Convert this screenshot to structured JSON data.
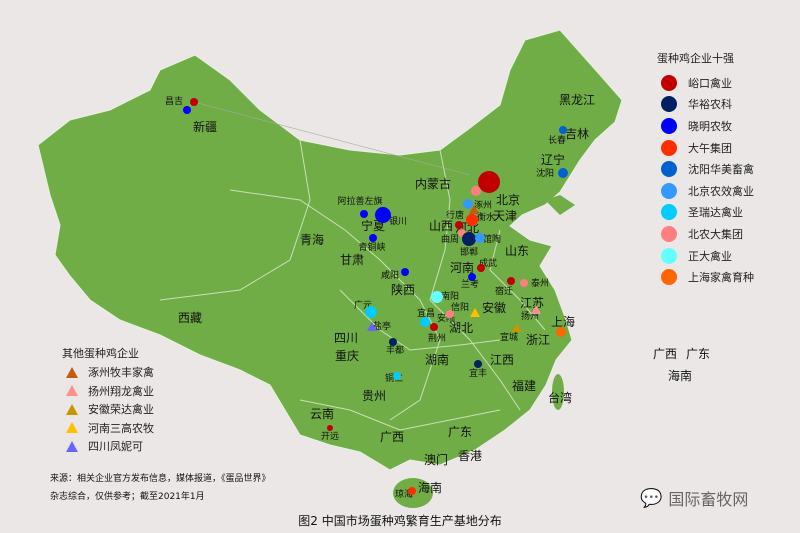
{
  "top_legend": {
    "title": "蛋种鸡企业十强",
    "items": [
      {
        "label": "峪口禽业",
        "color": "#c00000"
      },
      {
        "label": "华裕农科",
        "color": "#002060"
      },
      {
        "label": "晓明农牧",
        "color": "#0000ff"
      },
      {
        "label": "大午集团",
        "color": "#ff2d00"
      },
      {
        "label": "沈阳华美畜禽",
        "color": "#0060d0"
      },
      {
        "label": "北京农效禽业",
        "color": "#3399ff"
      },
      {
        "label": "圣瑞达禽业",
        "color": "#00ccff"
      },
      {
        "label": "北农大集团",
        "color": "#ff7f80"
      },
      {
        "label": "正大禽业",
        "color": "#66ffff"
      },
      {
        "label": "上海家禽育种",
        "color": "#ff6600"
      }
    ]
  },
  "other_legend": {
    "title": "其他蛋种鸡企业",
    "items": [
      {
        "label": "涿州牧丰家禽",
        "color": "#c55a11"
      },
      {
        "label": "扬州翔龙禽业",
        "color": "#ff8f8f"
      },
      {
        "label": "安徽荣达禽业",
        "color": "#c89600"
      },
      {
        "label": "河南三高农牧",
        "color": "#ffc000"
      },
      {
        "label": "四川凤妮可",
        "color": "#6666ff"
      }
    ]
  },
  "provinces": [
    "新疆",
    "西藏",
    "青海",
    "甘肃",
    "宁夏",
    "内蒙古",
    "黑龙江",
    "吉林",
    "辽宁",
    "北京",
    "天津",
    "河北",
    "山西",
    "山东",
    "河南",
    "陕西",
    "四川",
    "重庆",
    "贵州",
    "云南",
    "广西",
    "广东",
    "湖南",
    "湖北",
    "江西",
    "安徽",
    "江苏",
    "上海",
    "浙江",
    "福建",
    "台湾",
    "海南",
    "澳门",
    "香港"
  ],
  "inset_labels": [
    "广西",
    "广东",
    "海南"
  ],
  "cities": [
    "昌吉",
    "长春",
    "沈阳",
    "阿拉善左旗",
    "银川",
    "青铜峡",
    "咸阳",
    "涿州",
    "行唐",
    "衡水",
    "曲周",
    "馆陶",
    "邯郸",
    "成武",
    "兰考",
    "宿迁",
    "泰州",
    "扬州",
    "宣城",
    "南阳",
    "信阳",
    "宜昌",
    "安陆",
    "荆州",
    "广元",
    "盐亭",
    "丰都",
    "铜仁",
    "宜丰",
    "开远",
    "琼海"
  ],
  "source": [
    "来源：相关企业官方发布信息，媒体报道，《蛋品世界》",
    "杂志综合，仅供参考；截至2021年1月"
  ],
  "caption": "图2 中国市场蛋种鸡繁育生产基地分布",
  "watermark": "国际畜牧网",
  "colors": {
    "land": "#70ad47",
    "background": "#ebe7e6",
    "border": "#cfe3c0"
  }
}
